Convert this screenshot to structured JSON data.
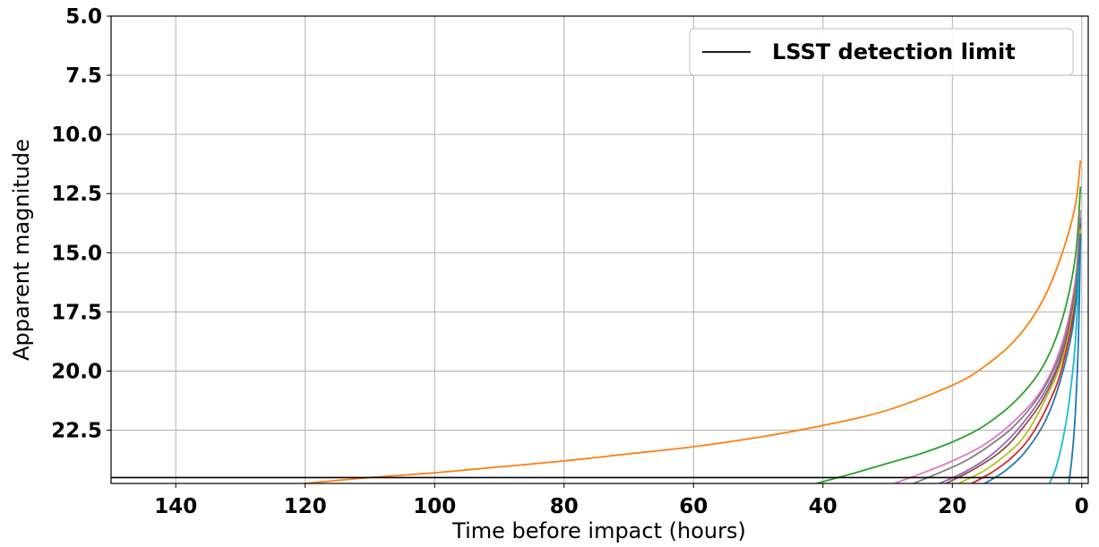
{
  "chart_data": {
    "type": "line",
    "xlabel": "Time before impact (hours)",
    "ylabel": "Apparent magnitude",
    "xlim": [
      150,
      -1
    ],
    "ylim": [
      24.75,
      5.0
    ],
    "y_inverted": true,
    "x_inverted": true,
    "grid": true,
    "legend_position": "top-right",
    "x_ticks": [
      {
        "value": 140,
        "label": "140"
      },
      {
        "value": 120,
        "label": "120"
      },
      {
        "value": 100,
        "label": "100"
      },
      {
        "value": 80,
        "label": "80"
      },
      {
        "value": 60,
        "label": "60"
      },
      {
        "value": 40,
        "label": "40"
      },
      {
        "value": 20,
        "label": "20"
      },
      {
        "value": 0,
        "label": "0"
      }
    ],
    "y_ticks": [
      {
        "value": 5.0,
        "label": "5.0"
      },
      {
        "value": 7.5,
        "label": "7.5"
      },
      {
        "value": 10.0,
        "label": "10.0"
      },
      {
        "value": 12.5,
        "label": "12.5"
      },
      {
        "value": 15.0,
        "label": "15.0"
      },
      {
        "value": 17.5,
        "label": "17.5"
      },
      {
        "value": 20.0,
        "label": "20.0"
      },
      {
        "value": 22.5,
        "label": "22.5"
      }
    ],
    "reference_line": {
      "name": "LSST detection limit",
      "y": 24.5,
      "color": "#000000"
    },
    "legend": [
      {
        "label": "LSST detection limit",
        "color": "#000000"
      }
    ],
    "series": [
      {
        "color": "#ff7f0e",
        "x": [
          120,
          110,
          100,
          90,
          80,
          70,
          60,
          50,
          40,
          30,
          20,
          15,
          10,
          6,
          3,
          1,
          0.2
        ],
        "y": [
          24.75,
          24.5,
          24.3,
          24.05,
          23.8,
          23.5,
          23.2,
          22.8,
          22.3,
          21.65,
          20.6,
          19.8,
          18.6,
          17.0,
          15.0,
          13.0,
          11.1
        ]
      },
      {
        "color": "#2ca02c",
        "x": [
          41,
          35,
          30,
          25,
          20,
          15,
          10,
          6,
          3,
          1,
          0.2
        ],
        "y": [
          24.75,
          24.3,
          23.9,
          23.5,
          23.0,
          22.3,
          21.2,
          19.8,
          17.8,
          15.2,
          12.2
        ]
      },
      {
        "color": "#e377c2",
        "x": [
          29,
          25,
          20,
          15,
          10,
          6,
          3,
          1,
          0.2
        ],
        "y": [
          24.75,
          24.35,
          23.8,
          23.1,
          22.0,
          20.7,
          18.8,
          16.2,
          13.2
        ]
      },
      {
        "color": "#7f7f7f",
        "x": [
          26,
          22,
          18,
          14,
          10,
          6,
          3,
          1,
          0.2
        ],
        "y": [
          24.75,
          24.3,
          23.8,
          23.1,
          22.2,
          20.8,
          19.0,
          16.4,
          13.5
        ]
      },
      {
        "color": "#9467bd",
        "x": [
          22,
          18,
          14,
          10,
          6,
          3,
          1,
          0.2
        ],
        "y": [
          24.75,
          24.25,
          23.55,
          22.5,
          21.0,
          19.2,
          16.6,
          13.7
        ]
      },
      {
        "color": "#8c564b",
        "x": [
          21,
          17,
          13,
          10,
          6,
          3,
          1,
          0.2
        ],
        "y": [
          24.75,
          24.2,
          23.5,
          22.7,
          21.2,
          19.3,
          16.7,
          13.8
        ]
      },
      {
        "color": "#bcbd22",
        "x": [
          19,
          15,
          12,
          9,
          6,
          3,
          1,
          0.2
        ],
        "y": [
          24.75,
          24.2,
          23.6,
          22.8,
          21.4,
          19.5,
          16.9,
          14.0
        ]
      },
      {
        "color": "#d62728",
        "x": [
          17,
          14,
          11,
          8,
          5,
          3,
          1,
          0.2
        ],
        "y": [
          24.75,
          24.3,
          23.7,
          22.8,
          21.3,
          19.8,
          17.1,
          14.2
        ]
      },
      {
        "color": "#1f77b4",
        "x": [
          15,
          12,
          9,
          6,
          4,
          2,
          1,
          0.2
        ],
        "y": [
          24.75,
          24.25,
          23.5,
          22.3,
          21.0,
          19.0,
          17.3,
          14.4
        ]
      },
      {
        "color": "#17becf",
        "x": [
          5,
          4,
          3,
          2,
          1,
          0.4
        ],
        "y": [
          24.75,
          24.1,
          23.0,
          21.4,
          18.8,
          15.5
        ]
      },
      {
        "color": "#1f77b4",
        "x": [
          2,
          1.5,
          1,
          0.5,
          0.2
        ],
        "y": [
          24.75,
          23.6,
          21.8,
          18.5,
          14.2
        ]
      }
    ]
  }
}
